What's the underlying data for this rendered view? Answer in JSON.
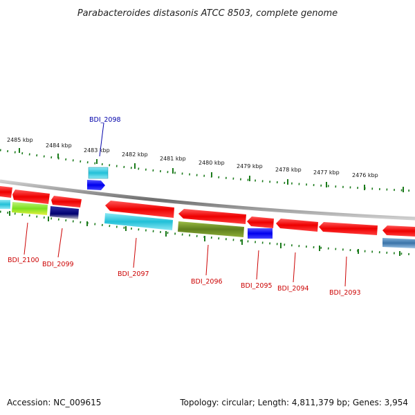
{
  "title": "Parabacteroides distasonis ATCC 8503, complete genome",
  "footer": {
    "accession": "Accession: NC_009615",
    "summary": "Topology: circular; Length: 4,811,379 bp; Genes: 3,954"
  },
  "ruler_labels": [
    "2485 kbp",
    "2484 kbp",
    "2483 kbp",
    "2482 kbp",
    "2481 kbp",
    "2480 kbp",
    "2479 kbp",
    "2478 kbp",
    "2477 kbp",
    "2476 kbp"
  ],
  "gene_labels": [
    "BDI_2098",
    "BDI_2100",
    "BDI_2099",
    "BDI_2097",
    "BDI_2096",
    "BDI_2095",
    "BDI_2094",
    "BDI_2093"
  ],
  "colors": {
    "label_top": "#0000aa",
    "label_bottom": "#cc0000",
    "tick": "#1a7a1a",
    "backbone": "#7a7a7a",
    "red_gene": "#ee0000",
    "cyan_gene": "#33c6dd",
    "blue_gene": "#1111ee",
    "olive_gene": "#6b8e23",
    "navy_gene": "#000080",
    "lime_gene": "#88ee22",
    "steel_gene": "#4682b4"
  }
}
